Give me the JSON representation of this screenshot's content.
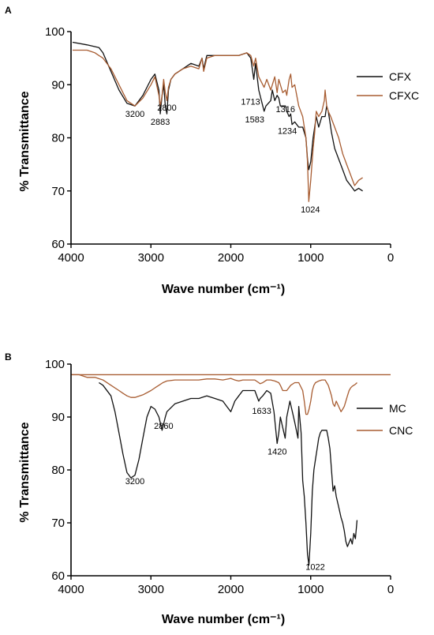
{
  "chart_data": [
    {
      "panel_label": "A",
      "type": "line",
      "xlabel": "Wave number (cm⁻¹)",
      "ylabel": "% Transmittance",
      "xlim": [
        4000,
        0
      ],
      "ylim": [
        60,
        100
      ],
      "x_reversed": true,
      "x_ticks": [
        4000,
        3000,
        2000,
        1000,
        0
      ],
      "y_ticks": [
        60,
        70,
        80,
        90,
        100
      ],
      "grid": false,
      "legend_position": "right",
      "series": [
        {
          "name": "CFX",
          "color": "#111111",
          "x": [
            3980,
            3800,
            3650,
            3600,
            3500,
            3400,
            3300,
            3200,
            3100,
            3000,
            2950,
            2900,
            2883,
            2860,
            2840,
            2820,
            2800,
            2780,
            2750,
            2700,
            2600,
            2500,
            2400,
            2360,
            2340,
            2300,
            2200,
            2100,
            2000,
            1900,
            1800,
            1750,
            1713,
            1690,
            1650,
            1600,
            1583,
            1560,
            1500,
            1480,
            1450,
            1420,
            1400,
            1380,
            1350,
            1316,
            1300,
            1270,
            1250,
            1234,
            1200,
            1150,
            1100,
            1060,
            1040,
            1024,
            1000,
            970,
            950,
            930,
            900,
            860,
            820,
            800,
            780,
            760,
            740,
            700,
            650,
            600,
            550,
            500,
            450,
            400,
            350
          ],
          "y": [
            98,
            97.5,
            97,
            96,
            92.5,
            89,
            86.5,
            86,
            88,
            91,
            92,
            89,
            84.5,
            88,
            90,
            86,
            84.5,
            89,
            91,
            92,
            93,
            94,
            93.5,
            95,
            93,
            95.5,
            95.5,
            95.5,
            95.5,
            95.5,
            96,
            95,
            91,
            94,
            89,
            86,
            85,
            86,
            87,
            89,
            87,
            88,
            87.5,
            86,
            86,
            86,
            85,
            84,
            84.5,
            82.5,
            83,
            82,
            82,
            80,
            76,
            74,
            75.5,
            80,
            82,
            84,
            82,
            84,
            84,
            86,
            85,
            83,
            81,
            78,
            76,
            74,
            72,
            71,
            70,
            70.5,
            70
          ]
        },
        {
          "name": "CFXC",
          "color": "#a85d32",
          "x": [
            3980,
            3800,
            3700,
            3650,
            3600,
            3500,
            3400,
            3300,
            3200,
            3100,
            3000,
            2950,
            2900,
            2883,
            2860,
            2840,
            2820,
            2800,
            2780,
            2750,
            2700,
            2600,
            2500,
            2400,
            2360,
            2340,
            2300,
            2200,
            2100,
            2000,
            1900,
            1800,
            1750,
            1713,
            1690,
            1650,
            1600,
            1583,
            1550,
            1500,
            1450,
            1420,
            1400,
            1350,
            1316,
            1300,
            1270,
            1250,
            1234,
            1200,
            1150,
            1100,
            1060,
            1040,
            1024,
            1000,
            970,
            950,
            930,
            900,
            860,
            830,
            820,
            800,
            780,
            750,
            700,
            650,
            600,
            550,
            500,
            450,
            400,
            350
          ],
          "y": [
            96.5,
            96.5,
            96,
            95.5,
            95,
            93,
            90,
            87,
            86,
            87.5,
            90,
            91.5,
            88,
            86,
            88,
            91,
            88.5,
            87,
            89.5,
            91,
            92,
            93,
            93.5,
            93,
            95,
            92.5,
            95,
            95.5,
            95.5,
            95.5,
            95.5,
            96,
            95.5,
            93.5,
            95,
            91.5,
            90,
            89.5,
            91,
            89,
            91.5,
            88.5,
            91,
            88.5,
            89,
            88,
            91,
            92,
            89.5,
            90,
            86,
            84,
            80,
            75.5,
            68,
            72,
            78,
            81,
            85,
            84,
            85,
            87,
            89,
            86,
            85,
            84,
            82,
            80,
            77,
            75,
            73,
            71,
            72,
            72.5
          ]
        }
      ],
      "annotations": [
        {
          "text": "3200",
          "x": 3200,
          "y": 86
        },
        {
          "text": "2883",
          "x": 2883,
          "y": 84.5
        },
        {
          "text": "2800",
          "x": 2800,
          "y": 84.5
        },
        {
          "text": "1713",
          "x": 1713,
          "y": 91
        },
        {
          "text": "1583",
          "x": 1583,
          "y": 85
        },
        {
          "text": "1316",
          "x": 1316,
          "y": 86
        },
        {
          "text": "1234",
          "x": 1234,
          "y": 82.5
        },
        {
          "text": "1024",
          "x": 1024,
          "y": 68
        }
      ]
    },
    {
      "panel_label": "B",
      "type": "line",
      "xlabel": "Wave number (cm⁻¹)",
      "ylabel": "% Transmittance",
      "xlim": [
        4000,
        0
      ],
      "ylim": [
        60,
        100
      ],
      "x_reversed": true,
      "x_ticks": [
        4000,
        3000,
        2000,
        1000,
        0
      ],
      "y_ticks": [
        60,
        70,
        80,
        90,
        100
      ],
      "grid": false,
      "legend_position": "right",
      "reference_line_y": 98,
      "series": [
        {
          "name": "MC",
          "color": "#111111",
          "x": [
            3650,
            3600,
            3500,
            3450,
            3400,
            3350,
            3300,
            3250,
            3200,
            3150,
            3100,
            3050,
            3000,
            2950,
            2900,
            2860,
            2820,
            2800,
            2700,
            2600,
            2500,
            2400,
            2300,
            2200,
            2100,
            2050,
            2000,
            1950,
            1900,
            1850,
            1800,
            1700,
            1650,
            1633,
            1600,
            1550,
            1500,
            1460,
            1440,
            1420,
            1400,
            1380,
            1350,
            1320,
            1300,
            1260,
            1230,
            1200,
            1160,
            1150,
            1120,
            1100,
            1080,
            1060,
            1040,
            1022,
            1000,
            980,
            960,
            940,
            920,
            900,
            880,
            860,
            840,
            800,
            780,
            760,
            740,
            720,
            700,
            680,
            650,
            620,
            600,
            580,
            560,
            540,
            500,
            480,
            460,
            440,
            420
          ],
          "y": [
            96.5,
            96,
            94,
            91,
            87,
            83,
            79.5,
            78.5,
            79,
            82,
            86,
            90,
            92,
            91.5,
            90,
            87.5,
            90,
            91,
            92.5,
            93,
            93.5,
            93.5,
            94,
            93.5,
            93,
            92,
            91,
            93,
            94,
            95,
            95,
            95,
            93,
            93.5,
            94,
            95,
            94.5,
            91,
            88,
            85,
            87,
            90,
            88,
            86,
            90,
            93,
            91,
            89,
            86,
            92,
            87,
            78,
            75,
            70,
            64,
            62,
            68,
            76,
            80,
            82,
            84,
            86,
            87,
            87.5,
            87.5,
            87.5,
            86,
            84,
            80,
            76,
            77,
            75,
            73,
            71,
            70,
            68.5,
            66.5,
            65.5,
            67,
            66,
            68,
            67,
            70.5
          ]
        },
        {
          "name": "CNC",
          "color": "#a85d32",
          "x": [
            4000,
            3900,
            3800,
            3700,
            3600,
            3500,
            3400,
            3350,
            3300,
            3250,
            3200,
            3100,
            3000,
            2950,
            2900,
            2850,
            2800,
            2700,
            2600,
            2500,
            2400,
            2300,
            2200,
            2100,
            2000,
            1950,
            1900,
            1850,
            1800,
            1700,
            1650,
            1633,
            1600,
            1550,
            1500,
            1450,
            1400,
            1380,
            1350,
            1300,
            1250,
            1200,
            1150,
            1100,
            1080,
            1060,
            1040,
            1020,
            1000,
            980,
            960,
            940,
            900,
            860,
            820,
            800,
            780,
            760,
            740,
            720,
            700,
            680,
            650,
            620,
            600,
            580,
            560,
            540,
            520,
            500,
            480,
            460,
            440,
            420
          ],
          "y": [
            98,
            98,
            97.5,
            97.5,
            97,
            96,
            95,
            94.5,
            94,
            93.7,
            93.7,
            94.2,
            95,
            95.5,
            96,
            96.5,
            96.8,
            97,
            97,
            97,
            97,
            97.2,
            97.2,
            97,
            97.3,
            97,
            96.8,
            97,
            97,
            97,
            96.5,
            96.3,
            96.5,
            97,
            97,
            96.8,
            96.5,
            96,
            95,
            95,
            96,
            96.5,
            96.5,
            95,
            93,
            90.5,
            90.5,
            91.5,
            93,
            95,
            96,
            96.5,
            96.8,
            97,
            97,
            96.5,
            96,
            95,
            94,
            92.5,
            92,
            93,
            92,
            91,
            91.5,
            92,
            93,
            94,
            95,
            95.5,
            95.8,
            96,
            96.2,
            96.5
          ]
        }
      ],
      "annotations": [
        {
          "text": "3200",
          "x": 3200,
          "y": 78.5
        },
        {
          "text": "2860",
          "x": 2860,
          "y": 87.5
        },
        {
          "text": "1633",
          "x": 1633,
          "y": 93
        },
        {
          "text": "1420",
          "x": 1420,
          "y": 85
        },
        {
          "text": "1022",
          "x": 1022,
          "y": 62
        }
      ]
    }
  ]
}
